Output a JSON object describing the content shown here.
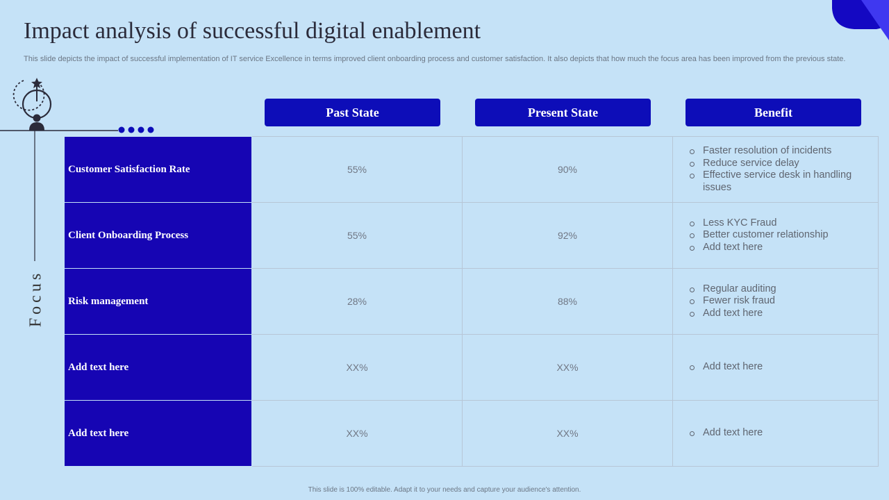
{
  "title": "Impact analysis of successful digital enablement",
  "subtitle": "This slide depicts the impact of successful implementation of  IT service Excellence in terms improved client onboarding process and customer satisfaction.  It also depicts that how much the focus area has been improved from the previous state.",
  "focus_label": "Focus",
  "columns": {
    "past": "Past State",
    "present": "Present State",
    "benefit": "Benefit"
  },
  "rows": [
    {
      "focus": "Customer Satisfaction Rate",
      "past": "55%",
      "present": "90%",
      "benefits": [
        "Faster resolution of incidents",
        "Reduce service delay",
        "Effective service desk in handling issues"
      ]
    },
    {
      "focus": "Client Onboarding Process",
      "past": "55%",
      "present": "92%",
      "benefits": [
        "Less KYC Fraud",
        "Better customer relationship",
        "Add text here"
      ]
    },
    {
      "focus": "Risk management",
      "past": "28%",
      "present": "88%",
      "benefits": [
        "Regular auditing",
        "Fewer risk fraud",
        "Add text here"
      ]
    },
    {
      "focus": "Add text here",
      "past": "XX%",
      "present": "XX%",
      "benefits": [
        "Add text here"
      ]
    },
    {
      "focus": "Add text here",
      "past": "XX%",
      "present": "XX%",
      "benefits": [
        "Add text here"
      ]
    }
  ],
  "footer": "This slide is 100% editable.  Adapt it to your needs and capture your audience's attention.",
  "colors": {
    "background": "#c5e2f7",
    "accent": "#0d0db8",
    "focus_cell": "#1605b3",
    "corner_light": "#3f38f0"
  },
  "icons": {
    "focus_icon": "person-target-icon"
  }
}
